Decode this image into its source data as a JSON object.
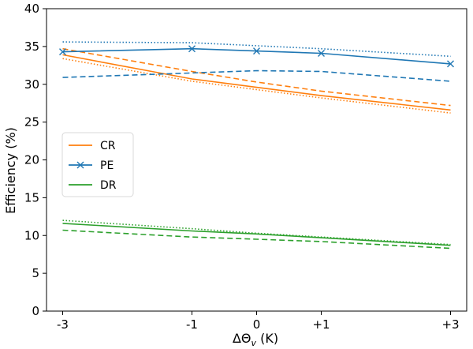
{
  "chart_data": {
    "type": "line",
    "xlabel": "ΔΘ",
    "xlabel_sub": "v",
    "xlabel_unit": " (K)",
    "ylabel": "Efficiency (%)",
    "xlim": [
      -3.25,
      3.25
    ],
    "ylim": [
      0,
      40
    ],
    "x_ticks": [
      {
        "value": -3,
        "label": "-3"
      },
      {
        "value": -1,
        "label": "-1"
      },
      {
        "value": 0,
        "label": "0"
      },
      {
        "value": 1,
        "label": "+1"
      },
      {
        "value": 3,
        "label": "+3"
      }
    ],
    "y_ticks": [
      0,
      5,
      10,
      15,
      20,
      25,
      30,
      35,
      40
    ],
    "grid": false,
    "legend": {
      "placement": "center-left",
      "entries": [
        {
          "name": "CR",
          "color": "#ff7f0e",
          "marker": "none"
        },
        {
          "name": "PE",
          "color": "#1f77b4",
          "marker": "x"
        },
        {
          "name": "DR",
          "color": "#2ca02c",
          "marker": "none"
        }
      ]
    },
    "series": [
      {
        "group": "CR",
        "style": "solid",
        "color": "#ff7f0e",
        "marker": "none",
        "x": [
          -3,
          -1,
          0,
          1,
          3
        ],
        "y": [
          33.9,
          30.7,
          29.6,
          28.5,
          26.6
        ]
      },
      {
        "group": "CR",
        "style": "dashed",
        "color": "#ff7f0e",
        "marker": "none",
        "x": [
          -3,
          -1,
          0,
          1,
          3
        ],
        "y": [
          34.7,
          31.7,
          30.3,
          29.1,
          27.2
        ]
      },
      {
        "group": "CR",
        "style": "dotted",
        "color": "#ff7f0e",
        "marker": "none",
        "x": [
          -3,
          -1,
          0,
          1,
          3
        ],
        "y": [
          33.4,
          30.4,
          29.3,
          28.2,
          26.2
        ]
      },
      {
        "group": "PE",
        "style": "solid",
        "color": "#1f77b4",
        "marker": "x",
        "x": [
          -3,
          -1,
          0,
          1,
          3
        ],
        "y": [
          34.3,
          34.7,
          34.4,
          34.1,
          32.7
        ]
      },
      {
        "group": "PE",
        "style": "dashed",
        "color": "#1f77b4",
        "marker": "none",
        "x": [
          -3,
          -1,
          0,
          1,
          3
        ],
        "y": [
          30.9,
          31.5,
          31.8,
          31.7,
          30.4
        ]
      },
      {
        "group": "PE",
        "style": "dotted",
        "color": "#1f77b4",
        "marker": "none",
        "x": [
          -3,
          -1,
          0,
          1,
          3
        ],
        "y": [
          35.6,
          35.5,
          35.1,
          34.7,
          33.7
        ]
      },
      {
        "group": "DR",
        "style": "solid",
        "color": "#2ca02c",
        "marker": "none",
        "x": [
          -3,
          -1,
          0,
          1,
          3
        ],
        "y": [
          11.6,
          10.6,
          10.2,
          9.7,
          8.7
        ]
      },
      {
        "group": "DR",
        "style": "dashed",
        "color": "#2ca02c",
        "marker": "none",
        "x": [
          -3,
          -1,
          0,
          1,
          3
        ],
        "y": [
          10.7,
          9.8,
          9.5,
          9.2,
          8.3
        ]
      },
      {
        "group": "DR",
        "style": "dotted",
        "color": "#2ca02c",
        "marker": "none",
        "x": [
          -3,
          -1,
          0,
          1,
          3
        ],
        "y": [
          12.0,
          10.9,
          10.3,
          9.8,
          8.8
        ]
      }
    ]
  }
}
